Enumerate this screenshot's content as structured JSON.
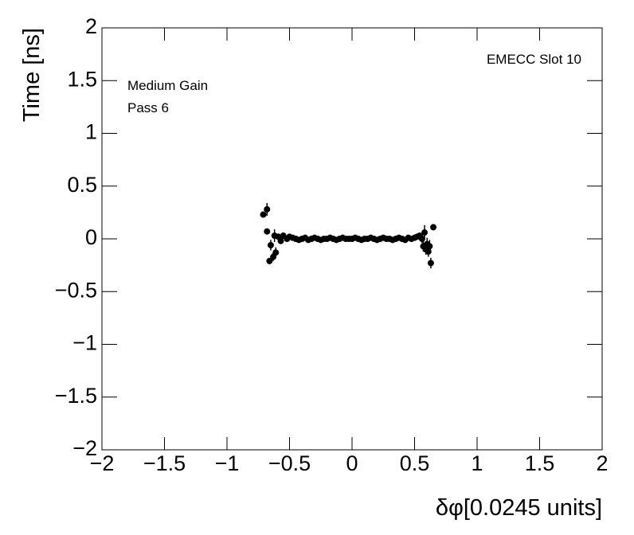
{
  "chart_data": {
    "type": "scatter",
    "xlabel": "δφ[0.0245 units]",
    "ylabel": "Time [ns]",
    "annotations": [
      "Medium Gain",
      "Pass 6",
      "EMECC Slot 10"
    ],
    "xlim": [
      -2,
      2
    ],
    "ylim": [
      -2,
      2
    ],
    "xticks": [
      {
        "value": -2,
        "label": "−2"
      },
      {
        "value": -1.5,
        "label": "−1.5"
      },
      {
        "value": -1,
        "label": "−1"
      },
      {
        "value": -0.5,
        "label": "−0.5"
      },
      0,
      0.5,
      1,
      1.5,
      2
    ],
    "yticks": [
      {
        "value": -2,
        "label": "−2"
      },
      {
        "value": -1.5,
        "label": "−1.5"
      },
      {
        "value": -1,
        "label": "−1"
      },
      {
        "value": -0.5,
        "label": "−0.5"
      },
      0,
      0.5,
      1,
      1.5,
      2
    ],
    "series": [
      {
        "color": "#000000",
        "x": [
          -0.71,
          -0.68,
          -0.68,
          -0.66,
          -0.65,
          -0.63,
          -0.62,
          -0.61,
          -0.59,
          -0.57,
          -0.55,
          -0.52,
          -0.5,
          -0.475,
          -0.45,
          -0.425,
          -0.4,
          -0.375,
          -0.35,
          -0.325,
          -0.3,
          -0.275,
          -0.25,
          -0.225,
          -0.2,
          -0.175,
          -0.15,
          -0.125,
          -0.1,
          -0.075,
          -0.05,
          -0.025,
          0,
          0.025,
          0.05,
          0.075,
          0.1,
          0.125,
          0.15,
          0.175,
          0.2,
          0.225,
          0.25,
          0.275,
          0.3,
          0.325,
          0.35,
          0.375,
          0.4,
          0.425,
          0.45,
          0.475,
          0.5,
          0.52,
          0.54,
          0.56,
          0.57,
          0.58,
          0.59,
          0.6,
          0.61,
          0.62,
          0.63,
          0.65
        ],
        "values": [
          0.23,
          0.28,
          0.07,
          -0.21,
          -0.06,
          -0.17,
          0.03,
          -0.13,
          0.02,
          -0.02,
          0.03,
          0,
          0.02,
          0.01,
          0,
          -0.01,
          0,
          0.01,
          -0.01,
          0,
          0.01,
          0,
          -0.01,
          0,
          0,
          0.01,
          0,
          -0.01,
          0,
          0.01,
          0,
          0,
          0,
          0.01,
          0,
          -0.01,
          0,
          0,
          0.01,
          0,
          -0.01,
          0,
          0.01,
          0,
          0,
          -0.01,
          0,
          0.01,
          0,
          -0.01,
          0.01,
          0,
          0.01,
          0.02,
          0.03,
          0,
          -0.07,
          0.06,
          -0.1,
          -0.05,
          -0.12,
          -0.07,
          -0.23,
          0.11
        ],
        "errors": [
          0.02,
          0.06,
          0.02,
          0.03,
          0.05,
          0.04,
          0.06,
          0.05,
          0.03,
          0.03,
          0.02,
          0.02,
          0.02,
          0.01,
          0.01,
          0.01,
          0.01,
          0.01,
          0.01,
          0.01,
          0.01,
          0.01,
          0.01,
          0.01,
          0.01,
          0.01,
          0.01,
          0.01,
          0.01,
          0.01,
          0.01,
          0.01,
          0.01,
          0.01,
          0.01,
          0.01,
          0.01,
          0.01,
          0.01,
          0.01,
          0.01,
          0.01,
          0.01,
          0.01,
          0.01,
          0.01,
          0.01,
          0.01,
          0.01,
          0.01,
          0.01,
          0.01,
          0.01,
          0.03,
          0.03,
          0.04,
          0.05,
          0.07,
          0.05,
          0.06,
          0.05,
          0.06,
          0.05,
          0.02
        ]
      }
    ]
  }
}
